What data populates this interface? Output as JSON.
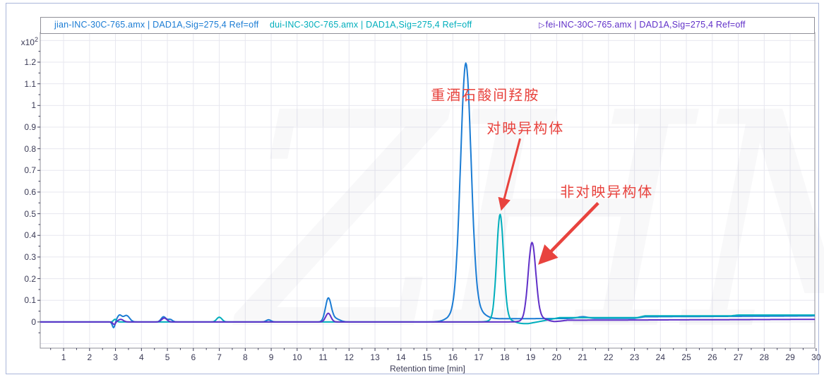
{
  "panel": {
    "background": "#ffffff",
    "border_color": "#aab6da"
  },
  "chart_data": {
    "type": "line",
    "title": "",
    "xlabel": "Retention time [min]",
    "y_multiplier": {
      "text": "x10",
      "exp": "2"
    },
    "xlim": [
      0.1,
      29.95
    ],
    "ylim": [
      -0.121,
      1.337
    ],
    "xticks": [
      1,
      2,
      3,
      4,
      5,
      6,
      7,
      8,
      9,
      10,
      11,
      12,
      13,
      14,
      15,
      16,
      17,
      18,
      19,
      20,
      21,
      22,
      23,
      24,
      25,
      26,
      27,
      28,
      29,
      30
    ],
    "ytick_values": [
      0,
      0.1,
      0.2,
      0.3,
      0.4,
      0.5,
      0.6,
      0.7,
      0.8,
      0.9,
      1.0,
      1.1,
      1.2
    ],
    "ytick_labels": [
      "0",
      "0.1",
      "0.2",
      "0.3",
      "0.4",
      "0.5",
      "0.6",
      "0.7",
      "0.8",
      "0.9",
      "1",
      "1.1",
      "1.2"
    ],
    "grid": true,
    "legend_position": "top-header-band",
    "colors": {
      "grid": "#e7e7ef",
      "frame": "#8f8f98",
      "tick": "#3a3a55",
      "annotation_red": "#e8433e",
      "watermark_gray": "#9090a8"
    },
    "series": [
      {
        "name": "jian",
        "legend": "jian-INC-30C-765.amx | DAD1A,Sig=275,4  Ref=off",
        "marker": "",
        "color": "#1b7cd4",
        "main_peak": {
          "retention_min": 16.5,
          "height_x100": 1.19
        },
        "baseline": [
          [
            0.1,
            0
          ],
          [
            15.5,
            0
          ],
          [
            17.9,
            0.015
          ],
          [
            23.0,
            0.017
          ],
          [
            23.4,
            0.024
          ],
          [
            30,
            0.028
          ]
        ],
        "peaks": [
          [
            2.93,
            -0.028,
            0.05
          ],
          [
            3.15,
            0.03,
            0.09
          ],
          [
            3.42,
            0.03,
            0.12
          ],
          [
            4.85,
            0.024,
            0.09
          ],
          [
            5.1,
            0.012,
            0.09
          ],
          [
            8.9,
            0.01,
            0.09
          ],
          [
            11.2,
            0.105,
            0.11
          ],
          [
            11.45,
            0.016,
            0.18
          ],
          [
            16.5,
            1.1,
            0.2
          ],
          [
            16.55,
            0.09,
            0.42
          ],
          [
            21.0,
            0.008,
            0.2
          ]
        ]
      },
      {
        "name": "dui",
        "legend": "dui-INC-30C-765.amx | DAD1A,Sig=275,4  Ref=off",
        "marker": "",
        "color": "#00aebc",
        "main_peak": {
          "retention_min": 17.8,
          "height_x100": 0.49
        },
        "baseline": [
          [
            0.1,
            0
          ],
          [
            18.05,
            0
          ],
          [
            18.2,
            -0.01
          ],
          [
            18.9,
            -0.008
          ],
          [
            19.6,
            0.008
          ],
          [
            20.1,
            0.02
          ],
          [
            23.1,
            0.02
          ],
          [
            23.4,
            0.028
          ],
          [
            26.7,
            0.028
          ],
          [
            27.0,
            0.032
          ],
          [
            30,
            0.032
          ]
        ],
        "peaks": [
          [
            2.98,
            0.012,
            0.06
          ],
          [
            7.0,
            0.022,
            0.1
          ],
          [
            17.82,
            0.47,
            0.13
          ],
          [
            17.95,
            0.03,
            0.3
          ]
        ]
      },
      {
        "name": "fei",
        "legend": "fei-INC-30C-765.amx | DAD1A,Sig=275,4  Ref=off",
        "marker": "▷",
        "color": "#6030c8",
        "main_peak": {
          "retention_min": 19.1,
          "height_x100": 0.37
        },
        "baseline": [
          [
            0.1,
            0
          ],
          [
            19.9,
            0
          ],
          [
            20.4,
            0.008
          ],
          [
            30,
            0.012
          ]
        ],
        "peaks": [
          [
            2.95,
            -0.012,
            0.05
          ],
          [
            3.2,
            0.012,
            0.1
          ],
          [
            4.88,
            0.018,
            0.1
          ],
          [
            11.2,
            0.04,
            0.1
          ],
          [
            19.05,
            0.345,
            0.145
          ],
          [
            19.2,
            0.025,
            0.32
          ]
        ]
      }
    ],
    "annotations": [
      {
        "text": "重酒石酸间羟胺",
        "t": 17.25,
        "v": 1.053,
        "color": "#e8433e"
      },
      {
        "text": "对映异构体",
        "t": 18.8,
        "v": 0.899,
        "color": "#e8433e",
        "arrow": {
          "from": [
            18.59,
            0.847
          ],
          "to": [
            17.88,
            0.523
          ],
          "width": 3
        }
      },
      {
        "text": "非对映异构体",
        "t": 21.93,
        "v": 0.605,
        "color": "#e8433e",
        "arrow": {
          "from": [
            21.6,
            0.549
          ],
          "to": [
            19.37,
            0.275
          ],
          "width": 4.5
        }
      }
    ],
    "watermark": "ZHM"
  }
}
